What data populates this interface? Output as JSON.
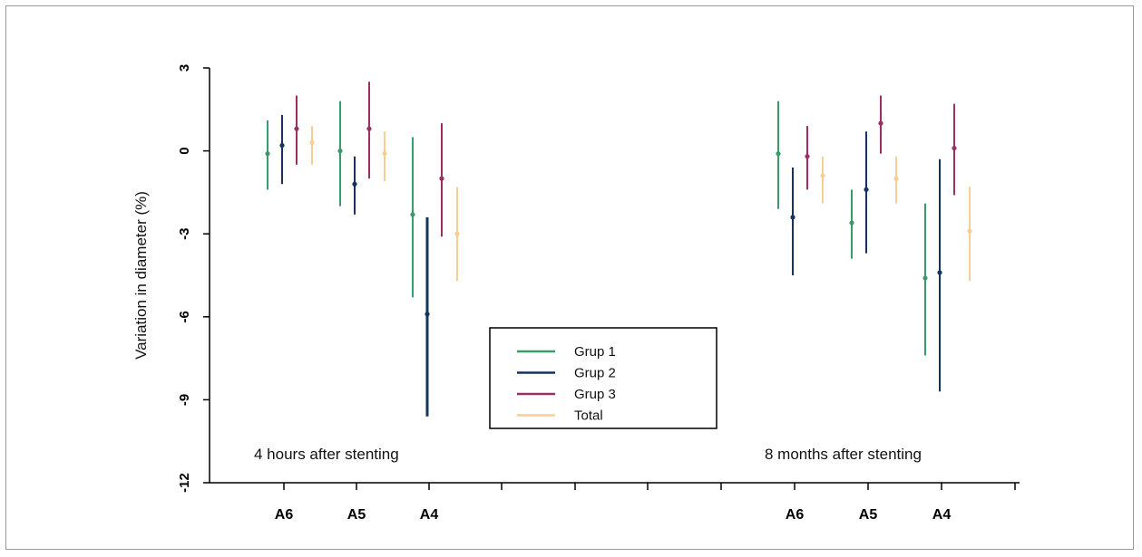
{
  "chart_data": {
    "type": "scatter",
    "ylabel": "Variation in diameter (%)",
    "xlabel": "",
    "ylim": [
      -12,
      3
    ],
    "yticks": [
      "3",
      "0",
      "-3",
      "-6",
      "-9",
      "-12"
    ],
    "ytick_values": [
      3,
      0,
      -3,
      -6,
      -9,
      -12
    ],
    "legend_placement": "center",
    "annotations": [
      {
        "id": "ann-left",
        "text": "4 hours after stenting"
      },
      {
        "id": "ann-right",
        "text": "8 months after stenting"
      }
    ],
    "groups": [
      {
        "label": "A6",
        "period": "4 hours after stenting"
      },
      {
        "label": "A5",
        "period": "4 hours after stenting"
      },
      {
        "label": "A4",
        "period": "4 hours after stenting"
      },
      {
        "label": "A6",
        "period": "8 months after stenting"
      },
      {
        "label": "A5",
        "period": "8 months after stenting"
      },
      {
        "label": "A4",
        "period": "8 months after stenting"
      }
    ],
    "series": [
      {
        "name": "Grup 1",
        "color": "#3a9a6a",
        "mean": [
          -0.1,
          0.0,
          -2.3,
          -0.1,
          -2.6,
          -4.6
        ],
        "lower": [
          -1.4,
          -2.0,
          -5.3,
          -2.1,
          -3.9,
          -7.4
        ],
        "upper": [
          1.1,
          1.8,
          0.5,
          1.8,
          -1.4,
          -1.9
        ]
      },
      {
        "name": "Grup 2",
        "color": "#12345e",
        "mean": [
          0.2,
          -1.2,
          -5.9,
          -2.4,
          -1.4,
          -4.4
        ],
        "lower": [
          -1.2,
          -2.3,
          -9.6,
          -4.5,
          -3.7,
          -8.7
        ],
        "upper": [
          1.3,
          -0.2,
          -2.4,
          -0.6,
          0.7,
          -0.3
        ]
      },
      {
        "name": "Grup 3",
        "color": "#9a2e66",
        "mean": [
          0.8,
          0.8,
          -1.0,
          -0.2,
          1.0,
          0.1
        ],
        "lower": [
          -0.5,
          -1.0,
          -3.1,
          -1.4,
          -0.1,
          -1.6
        ],
        "upper": [
          2.0,
          2.5,
          1.0,
          0.9,
          2.0,
          1.7
        ]
      },
      {
        "name": "Total",
        "color": "#f6cf96",
        "mean": [
          0.3,
          -0.1,
          -3.0,
          -0.9,
          -1.0,
          -2.9
        ],
        "lower": [
          -0.5,
          -1.1,
          -4.7,
          -1.9,
          -1.9,
          -4.7
        ],
        "upper": [
          0.9,
          0.7,
          -1.3,
          -0.2,
          -0.2,
          -1.3
        ]
      }
    ]
  }
}
